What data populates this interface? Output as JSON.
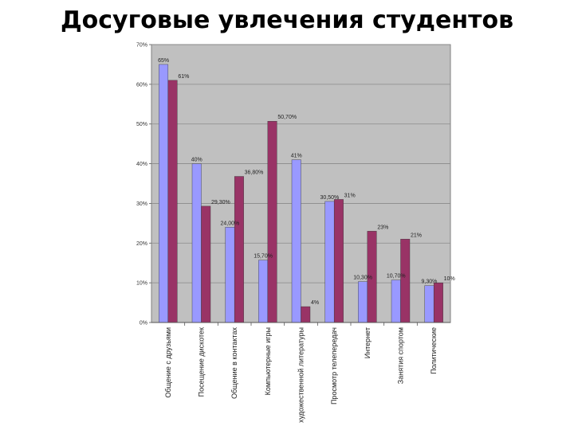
{
  "title": "Досуговые увлечения студентов",
  "chart_data": {
    "type": "bar",
    "title": "Досуговые увлечения студентов",
    "categories": [
      "Общение с друзьями",
      "Посещение дискотек",
      "Общение в контактах",
      "Компьютерные игры",
      "Чтение художественной литературы",
      "Просмотр телепередач",
      "Интернет",
      "Занятия спортом",
      "Политические"
    ],
    "series": [
      {
        "color": "#9999ff",
        "values": [
          65,
          40,
          24,
          15.7,
          41,
          30.5,
          10.3,
          10.7,
          9.3
        ],
        "labels": [
          "65%",
          "40%",
          "24,00%",
          "15,70%",
          "41%",
          "30,50%",
          "10,30%",
          "10,70%",
          "9,30%"
        ]
      },
      {
        "color": "#993366",
        "values": [
          61,
          29.3,
          36.8,
          50.7,
          4,
          31,
          23,
          21,
          10
        ],
        "labels": [
          "61%",
          "29,30%",
          "36,80%",
          "50,70%",
          "4%",
          "31%",
          "23%",
          "21%",
          "10%"
        ]
      }
    ],
    "yticks": [
      "0%",
      "10%",
      "20%",
      "30%",
      "40%",
      "50%",
      "60%",
      "70%"
    ],
    "ylim": [
      0,
      70
    ],
    "grid": true,
    "plot_background": "#c0c0c0",
    "xlabel": "",
    "ylabel": ""
  }
}
